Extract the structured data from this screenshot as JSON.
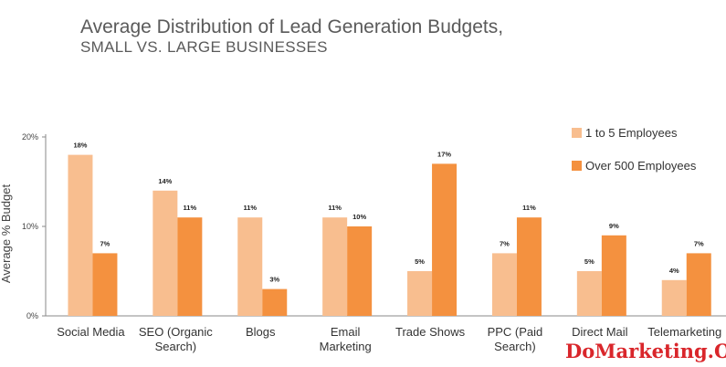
{
  "chart_data": {
    "type": "bar",
    "title": "Average Distribution of Lead Generation Budgets,",
    "subtitle": "SMALL VS. LARGE BUSINESSES",
    "ylabel": "Average % Budget",
    "xlabel": "",
    "ylim": [
      0,
      20
    ],
    "yticks": [
      "0%",
      "10%",
      "20%"
    ],
    "ytick_values": [
      0,
      10,
      20
    ],
    "grid": false,
    "legend_position": "top-right",
    "categories": [
      [
        "Social Media"
      ],
      [
        "SEO (Organic",
        "Search)"
      ],
      [
        "Blogs"
      ],
      [
        "Email",
        "Marketing"
      ],
      [
        "Trade Shows"
      ],
      [
        "PPC (Paid",
        "Search)"
      ],
      [
        "Direct Mail"
      ],
      [
        "Telemarketing"
      ]
    ],
    "series": [
      {
        "name": "1 to 5 Employees",
        "color": "#f8be8f",
        "values": [
          18,
          14,
          11,
          11,
          5,
          7,
          5,
          4
        ],
        "labels": [
          "18%",
          "14%",
          "11%",
          "11%",
          "5%",
          "7%",
          "5%",
          "4%"
        ]
      },
      {
        "name": "Over 500 Employees",
        "color": "#f4913f",
        "values": [
          7,
          11,
          3,
          10,
          17,
          11,
          9,
          7
        ],
        "labels": [
          "7%",
          "11%",
          "3%",
          "10%",
          "17%",
          "11%",
          "9%",
          "7%"
        ]
      }
    ]
  },
  "watermark": "DoMarketing.Org"
}
